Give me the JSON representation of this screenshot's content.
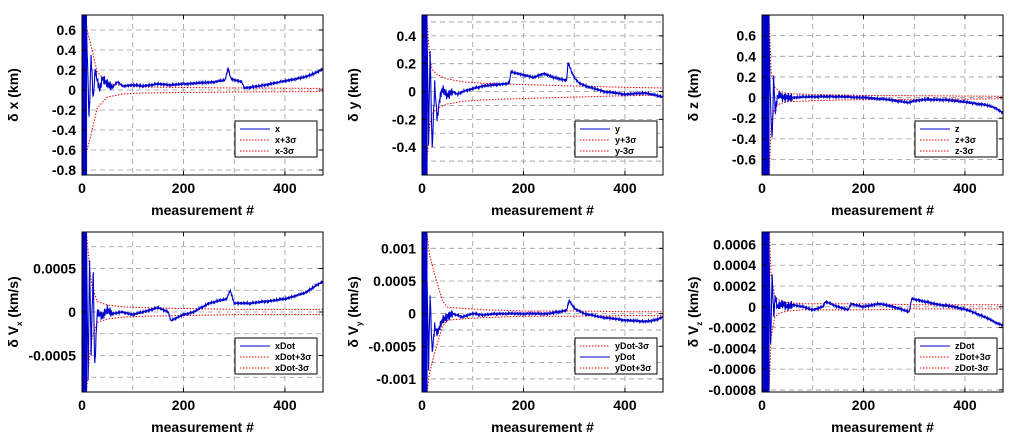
{
  "chart_data": [
    {
      "type": "line",
      "xlabel": "measurement #",
      "ylabel": "δ x (km)",
      "xlim": [
        0,
        475
      ],
      "ylim": [
        -0.85,
        0.75
      ],
      "xticks": [
        "0",
        "200",
        "400"
      ],
      "yticks": [
        {
          "v": 0.6,
          "label": "0.6"
        },
        {
          "v": 0.4,
          "label": "0.4"
        },
        {
          "v": 0.2,
          "label": "0.2"
        },
        {
          "v": 0,
          "label": "0"
        },
        {
          "v": -0.2,
          "label": "-0.2"
        },
        {
          "v": -0.4,
          "label": "-0.4"
        },
        {
          "v": -0.6,
          "label": "-0.6"
        },
        {
          "v": -0.8,
          "label": "-0.8"
        }
      ],
      "ygrid": [
        0.6,
        0.4,
        0.2,
        0,
        -0.2,
        -0.4,
        -0.6,
        -0.8
      ],
      "grid": true,
      "legend_placement": "bottom-right",
      "legend": [
        {
          "label": "x",
          "color": "#0000cc",
          "dash": "solid"
        },
        {
          "label": "x+3σ",
          "color": "#ee0000",
          "dash": "dotted"
        },
        {
          "label": "x-3σ",
          "color": "#ee0000",
          "dash": "dotted"
        }
      ],
      "osc": {
        "x0": 0,
        "x1": 9,
        "amp": 1.2
      },
      "sigma": {
        "x": [
          10,
          20,
          30,
          50,
          80,
          120,
          200,
          300,
          400,
          475
        ],
        "upper": [
          0.6,
          0.4,
          0.18,
          0.07,
          0.04,
          0.03,
          0.025,
          0.02,
          0.018,
          0.016
        ]
      },
      "series": [
        {
          "color": "#0000cc",
          "dash": "solid",
          "x": [
            9,
            14,
            18,
            22,
            26,
            30,
            35,
            40,
            50,
            60,
            70,
            80,
            100,
            120,
            150,
            175,
            200,
            230,
            260,
            282,
            288,
            293,
            300,
            315,
            320,
            350,
            380,
            410,
            440,
            460,
            475
          ],
          "y": [
            0.6,
            -0.3,
            0.35,
            -0.1,
            0.2,
            0.1,
            0.0,
            0.12,
            0.06,
            0.03,
            0.08,
            0.04,
            0.05,
            0.04,
            0.06,
            0.05,
            0.06,
            0.07,
            0.08,
            0.1,
            0.22,
            0.12,
            0.1,
            0.08,
            0.02,
            0.04,
            0.07,
            0.1,
            0.13,
            0.17,
            0.21
          ]
        }
      ]
    },
    {
      "type": "line",
      "xlabel": "measurement #",
      "ylabel": "δ y (km)",
      "xlim": [
        0,
        475
      ],
      "ylim": [
        -0.6,
        0.55
      ],
      "xticks": [
        "0",
        "200",
        "400"
      ],
      "yticks": [
        {
          "v": 0.4,
          "label": "0.4"
        },
        {
          "v": 0.2,
          "label": "0.2"
        },
        {
          "v": 0,
          "label": "0"
        },
        {
          "v": -0.2,
          "label": "-0.2"
        },
        {
          "v": -0.4,
          "label": "-0.4"
        }
      ],
      "ygrid": [
        0.5,
        0.4,
        0.3,
        0.2,
        0.1,
        0,
        -0.1,
        -0.2,
        -0.3,
        -0.4,
        -0.5
      ],
      "grid": true,
      "legend_placement": "bottom-right",
      "legend": [
        {
          "label": "y",
          "color": "#0000cc",
          "dash": "solid"
        },
        {
          "label": "y+3σ",
          "color": "#ee0000",
          "dash": "dotted"
        },
        {
          "label": "y-3σ",
          "color": "#ee0000",
          "dash": "dotted"
        }
      ],
      "osc": {
        "x0": 0,
        "x1": 10,
        "amp": 1.0
      },
      "sigma": {
        "x": [
          10,
          15,
          20,
          30,
          50,
          80,
          120,
          200,
          300,
          400,
          475
        ],
        "upper": [
          0.5,
          0.25,
          0.16,
          0.12,
          0.09,
          0.07,
          0.06,
          0.05,
          0.04,
          0.03,
          0.025
        ]
      },
      "series": [
        {
          "color": "#0000cc",
          "dash": "solid",
          "x": [
            10,
            13,
            16,
            20,
            25,
            30,
            35,
            40,
            50,
            60,
            70,
            80,
            100,
            120,
            150,
            172,
            175,
            200,
            220,
            240,
            260,
            285,
            288,
            295,
            300,
            310,
            330,
            360,
            400,
            440,
            475
          ],
          "y": [
            0.4,
            -0.35,
            0.3,
            -0.42,
            0.05,
            -0.2,
            -0.05,
            0.02,
            -0.03,
            0.0,
            -0.02,
            0.0,
            0.02,
            0.04,
            0.05,
            0.06,
            0.14,
            0.12,
            0.1,
            0.13,
            0.1,
            0.08,
            0.21,
            0.14,
            0.1,
            0.06,
            0.03,
            0.0,
            -0.02,
            -0.01,
            -0.04
          ]
        }
      ]
    },
    {
      "type": "line",
      "xlabel": "measurement #",
      "ylabel": "δ z (km)",
      "xlim": [
        0,
        475
      ],
      "ylim": [
        -0.75,
        0.8
      ],
      "xticks": [
        "0",
        "200",
        "400"
      ],
      "yticks": [
        {
          "v": 0.6,
          "label": "0.6"
        },
        {
          "v": 0.4,
          "label": "0.4"
        },
        {
          "v": 0.2,
          "label": "0.2"
        },
        {
          "v": 0,
          "label": "0"
        },
        {
          "v": -0.2,
          "label": "-0.2"
        },
        {
          "v": -0.4,
          "label": "-0.4"
        },
        {
          "v": -0.6,
          "label": "-0.6"
        }
      ],
      "ygrid": [
        0.6,
        0.4,
        0.2,
        0,
        -0.2,
        -0.4,
        -0.6
      ],
      "grid": true,
      "legend_placement": "bottom-right",
      "legend": [
        {
          "label": "z",
          "color": "#0000cc",
          "dash": "solid"
        },
        {
          "label": "z+3σ",
          "color": "#ee0000",
          "dash": "dotted"
        },
        {
          "label": "z-3σ",
          "color": "#ee0000",
          "dash": "dotted"
        }
      ],
      "osc": {
        "x0": 0,
        "x1": 14,
        "amp": 1.2
      },
      "sigma": {
        "x": [
          14,
          18,
          25,
          35,
          50,
          100,
          200,
          300,
          400,
          475
        ],
        "upper": [
          0.8,
          0.25,
          0.1,
          0.06,
          0.04,
          0.03,
          0.02,
          0.018,
          0.015,
          0.012
        ]
      },
      "series": [
        {
          "color": "#0000cc",
          "dash": "solid",
          "x": [
            14,
            17,
            20,
            23,
            26,
            30,
            35,
            40,
            60,
            100,
            150,
            200,
            250,
            290,
            300,
            320,
            350,
            380,
            410,
            440,
            460,
            475
          ],
          "y": [
            0.55,
            -0.1,
            -0.4,
            0.2,
            -0.15,
            0.0,
            0.03,
            0.0,
            0.0,
            0.01,
            0.01,
            0.0,
            -0.02,
            -0.05,
            -0.03,
            -0.02,
            -0.02,
            -0.03,
            -0.05,
            -0.07,
            -0.1,
            -0.15
          ]
        }
      ]
    },
    {
      "type": "line",
      "xlabel": "measurement #",
      "ylabel": "δ V",
      "ylabel_sub": "x",
      "ylabel_unit": " (km/s)",
      "xlim": [
        0,
        475
      ],
      "ylim": [
        -0.00092,
        0.00092
      ],
      "xticks": [
        "0",
        "200",
        "400"
      ],
      "yticks": [
        {
          "v": 0.0005,
          "label": "0.0005"
        },
        {
          "v": 0,
          "label": "0"
        },
        {
          "v": -0.0005,
          "label": "-0.0005"
        }
      ],
      "ygrid": [
        0.00075,
        0.0005,
        0.00025,
        0,
        -0.00025,
        -0.0005,
        -0.00075
      ],
      "grid": true,
      "legend_placement": "bottom-right",
      "legend": [
        {
          "label": "xDot",
          "color": "#0000cc",
          "dash": "solid"
        },
        {
          "label": "xDot+3σ",
          "color": "#ee0000",
          "dash": "dotted"
        },
        {
          "label": "xDot-3σ",
          "color": "#ee0000",
          "dash": "dotted"
        }
      ],
      "osc": {
        "x0": 0,
        "x1": 9,
        "amp": 0.002
      },
      "sigma": {
        "x": [
          9,
          15,
          20,
          30,
          50,
          80,
          120,
          200,
          300,
          400,
          475
        ],
        "upper": [
          0.0009,
          0.0005,
          0.0003,
          0.00012,
          8e-05,
          6e-05,
          5e-05,
          4e-05,
          3e-05,
          3e-05,
          3e-05
        ]
      },
      "series": [
        {
          "color": "#0000cc",
          "dash": "solid",
          "x": [
            9,
            12,
            15,
            18,
            22,
            25,
            30,
            40,
            50,
            60,
            80,
            100,
            120,
            150,
            170,
            175,
            200,
            220,
            250,
            285,
            292,
            300,
            330,
            360,
            400,
            440,
            460,
            475
          ],
          "y": [
            0.0007,
            -0.0008,
            0.0006,
            -0.0005,
            0.0005,
            -0.00065,
            0.0,
            -5e-05,
            3e-05,
            -2e-05,
            0.0,
            -3e-05,
            0.0,
            5e-05,
            0.0,
            -0.0001,
            -3e-05,
            0.0,
            0.0001,
            0.00015,
            0.00025,
            0.0001,
            0.0001,
            0.00012,
            0.00015,
            0.00022,
            0.0003,
            0.00035
          ]
        }
      ]
    },
    {
      "type": "line",
      "xlabel": "measurement #",
      "ylabel": "δ V",
      "ylabel_sub": "y",
      "ylabel_unit": " (km/s)",
      "xlim": [
        0,
        475
      ],
      "ylim": [
        -0.0012,
        0.00125
      ],
      "xticks": [
        "0",
        "200",
        "400"
      ],
      "yticks": [
        {
          "v": 0.001,
          "label": "0.001"
        },
        {
          "v": 0.0005,
          "label": "0.0005"
        },
        {
          "v": 0,
          "label": "0"
        },
        {
          "v": -0.0005,
          "label": "-0.0005"
        },
        {
          "v": -0.001,
          "label": "-0.001"
        }
      ],
      "ygrid": [
        0.001,
        0.00075,
        0.0005,
        0.00025,
        0,
        -0.00025,
        -0.0005,
        -0.00075,
        -0.001
      ],
      "grid": true,
      "legend_placement": "bottom-right",
      "legend": [
        {
          "label": "yDot-3σ",
          "color": "#ee0000",
          "dash": "dotted"
        },
        {
          "label": "yDot",
          "color": "#0000cc",
          "dash": "solid"
        },
        {
          "label": "yDot+3σ",
          "color": "#ee0000",
          "dash": "dotted"
        }
      ],
      "osc": {
        "x0": 0,
        "x1": 10,
        "amp": 0.002
      },
      "sigma": {
        "x": [
          10,
          15,
          25,
          40,
          50,
          80,
          120,
          200,
          300,
          400,
          475
        ],
        "upper": [
          0.0012,
          0.0009,
          0.0006,
          0.0002,
          0.0001,
          8e-05,
          6e-05,
          4e-05,
          4e-05,
          3e-05,
          3e-05
        ]
      },
      "series": [
        {
          "color": "#0000cc",
          "dash": "solid",
          "x": [
            10,
            13,
            16,
            20,
            25,
            30,
            40,
            50,
            60,
            80,
            100,
            120,
            150,
            200,
            250,
            285,
            290,
            300,
            320,
            350,
            400,
            440,
            460,
            475
          ],
          "y": [
            0.0005,
            -0.0008,
            0.0003,
            -0.0006,
            -0.0002,
            -0.0003,
            -0.0001,
            -5e-05,
            0.0,
            -5e-05,
            0.0,
            -2e-05,
            0.0,
            0.0,
            0.0,
            5e-05,
            0.0002,
            8e-05,
            0.0,
            -5e-05,
            -0.0001,
            -0.00012,
            -0.0001,
            -5e-05
          ]
        }
      ]
    },
    {
      "type": "line",
      "xlabel": "measurement #",
      "ylabel": "δ V",
      "ylabel_sub": "z",
      "ylabel_unit": " (km/s)",
      "xlim": [
        0,
        475
      ],
      "ylim": [
        -0.00082,
        0.00072
      ],
      "xticks": [
        "0",
        "200",
        "400"
      ],
      "yticks": [
        {
          "v": 0.0006,
          "label": "0.0006"
        },
        {
          "v": 0.0004,
          "label": "0.0004"
        },
        {
          "v": 0.0002,
          "label": "0.0002"
        },
        {
          "v": 0,
          "label": "0"
        },
        {
          "v": -0.0002,
          "label": "-0.0002"
        },
        {
          "v": -0.0004,
          "label": "-0.0004"
        },
        {
          "v": -0.0006,
          "label": "-0.0006"
        },
        {
          "v": -0.0008,
          "label": "-0.0008"
        }
      ],
      "ygrid": [
        0.0006,
        0.0004,
        0.0002,
        0,
        -0.0002,
        -0.0004,
        -0.0006,
        -0.0008
      ],
      "grid": true,
      "legend_placement": "bottom-right",
      "legend": [
        {
          "label": "zDot",
          "color": "#0000cc",
          "dash": "solid"
        },
        {
          "label": "zDot+3σ",
          "color": "#ee0000",
          "dash": "dotted"
        },
        {
          "label": "zDot-3σ",
          "color": "#ee0000",
          "dash": "dotted"
        }
      ],
      "osc": {
        "x0": 0,
        "x1": 14,
        "amp": 0.002
      },
      "sigma": {
        "x": [
          14,
          18,
          25,
          35,
          50,
          80,
          120,
          200,
          300,
          400,
          475
        ],
        "upper": [
          0.0008,
          0.0003,
          0.0001,
          6e-05,
          4e-05,
          3e-05,
          3e-05,
          3e-05,
          2e-05,
          2e-05,
          2e-05
        ]
      },
      "series": [
        {
          "color": "#0000cc",
          "dash": "solid",
          "x": [
            14,
            17,
            20,
            23,
            26,
            30,
            40,
            50,
            60,
            80,
            100,
            120,
            125,
            150,
            170,
            175,
            200,
            230,
            260,
            290,
            295,
            320,
            350,
            380,
            410,
            440,
            460,
            475
          ],
          "y": [
            0.0005,
            -0.0004,
            0.0003,
            -0.0001,
            0.0001,
            0.0,
            3e-05,
            0.0,
            2e-05,
            0.0,
            -3e-05,
            0.0,
            5e-05,
            0.0,
            -3e-05,
            3e-05,
            0.0,
            3e-05,
            0.0,
            -5e-05,
            8e-05,
            5e-05,
            2e-05,
            0.0,
            -4e-05,
            -0.0001,
            -0.00015,
            -0.00018
          ]
        }
      ]
    }
  ]
}
